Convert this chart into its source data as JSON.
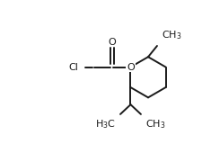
{
  "background_color": "#ffffff",
  "line_color": "#1a1a1a",
  "line_width": 1.4,
  "font_size": 8.0,
  "figsize": [
    2.26,
    1.8
  ],
  "dpi": 100,
  "xlim": [
    -1.25,
    1.65
  ],
  "ylim": [
    -1.05,
    1.0
  ]
}
